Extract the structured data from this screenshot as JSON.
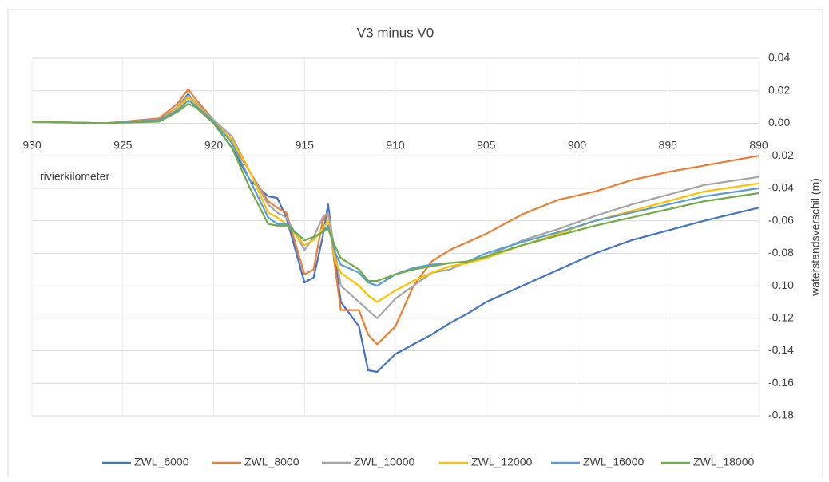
{
  "chart_data": {
    "type": "line",
    "title": "V3 minus V0",
    "annotation": "rivierkilometer",
    "y_label": "waterstandsverschil (m)",
    "x": [
      930,
      926,
      923,
      922,
      921.4,
      921,
      920,
      919,
      918,
      917,
      916.5,
      916,
      915,
      914.5,
      914,
      913.7,
      913.3,
      913,
      912,
      911.5,
      911,
      910,
      909,
      908,
      907,
      906,
      905,
      903,
      901,
      899,
      897,
      895,
      893,
      890
    ],
    "series": [
      {
        "name": "ZWL_6000",
        "color": "#4472c4",
        "values": [
          0.001,
          0,
          0.002,
          0.01,
          0.018,
          0.012,
          0.0,
          -0.015,
          -0.035,
          -0.045,
          -0.046,
          -0.058,
          -0.098,
          -0.095,
          -0.07,
          -0.05,
          -0.085,
          -0.11,
          -0.125,
          -0.152,
          -0.153,
          -0.142,
          -0.136,
          -0.13,
          -0.123,
          -0.117,
          -0.11,
          -0.1,
          -0.09,
          -0.08,
          -0.072,
          -0.066,
          -0.06,
          -0.052
        ]
      },
      {
        "name": "ZWL_8000",
        "color": "#ed7d31",
        "values": [
          0.001,
          0,
          0.003,
          0.012,
          0.021,
          0.015,
          0.002,
          -0.012,
          -0.03,
          -0.048,
          -0.052,
          -0.055,
          -0.093,
          -0.09,
          -0.06,
          -0.055,
          -0.09,
          -0.115,
          -0.115,
          -0.13,
          -0.136,
          -0.125,
          -0.1,
          -0.085,
          -0.078,
          -0.073,
          -0.068,
          -0.056,
          -0.047,
          -0.042,
          -0.035,
          -0.03,
          -0.026,
          -0.02
        ]
      },
      {
        "name": "ZWL_10000",
        "color": "#a5a5a5",
        "values": [
          0.001,
          0,
          0.002,
          0.01,
          0.017,
          0.013,
          0.002,
          -0.008,
          -0.03,
          -0.05,
          -0.055,
          -0.058,
          -0.078,
          -0.07,
          -0.058,
          -0.055,
          -0.08,
          -0.1,
          -0.11,
          -0.115,
          -0.12,
          -0.108,
          -0.1,
          -0.092,
          -0.09,
          -0.085,
          -0.082,
          -0.072,
          -0.065,
          -0.057,
          -0.05,
          -0.044,
          -0.038,
          -0.033
        ]
      },
      {
        "name": "ZWL_12000",
        "color": "#ffc000",
        "values": [
          0.001,
          0,
          0.002,
          0.009,
          0.016,
          0.012,
          0.001,
          -0.01,
          -0.03,
          -0.055,
          -0.058,
          -0.062,
          -0.075,
          -0.072,
          -0.065,
          -0.06,
          -0.085,
          -0.092,
          -0.1,
          -0.106,
          -0.11,
          -0.103,
          -0.097,
          -0.092,
          -0.088,
          -0.086,
          -0.083,
          -0.075,
          -0.068,
          -0.06,
          -0.054,
          -0.048,
          -0.042,
          -0.037
        ]
      },
      {
        "name": "ZWL_16000",
        "color": "#5b9bd5",
        "values": [
          0.001,
          0,
          0.002,
          0.008,
          0.014,
          0.011,
          0.001,
          -0.012,
          -0.035,
          -0.058,
          -0.062,
          -0.062,
          -0.072,
          -0.07,
          -0.067,
          -0.063,
          -0.08,
          -0.087,
          -0.092,
          -0.098,
          -0.1,
          -0.093,
          -0.089,
          -0.087,
          -0.086,
          -0.085,
          -0.08,
          -0.073,
          -0.067,
          -0.06,
          -0.055,
          -0.05,
          -0.045,
          -0.04
        ]
      },
      {
        "name": "ZWL_18000",
        "color": "#70ad47",
        "values": [
          0.001,
          0,
          0.001,
          0.007,
          0.012,
          0.01,
          0,
          -0.015,
          -0.04,
          -0.062,
          -0.063,
          -0.063,
          -0.072,
          -0.07,
          -0.067,
          -0.065,
          -0.076,
          -0.083,
          -0.09,
          -0.097,
          -0.097,
          -0.093,
          -0.09,
          -0.088,
          -0.086,
          -0.085,
          -0.082,
          -0.075,
          -0.069,
          -0.063,
          -0.058,
          -0.053,
          -0.048,
          -0.043
        ]
      }
    ],
    "xlim": [
      930,
      890
    ],
    "xticks": [
      930,
      925,
      920,
      915,
      910,
      905,
      900,
      895,
      890
    ],
    "ylim": [
      -0.18,
      0.04
    ],
    "yticks": [
      0.04,
      0.02,
      {
        "value": 0,
        "label": "0.00"
      },
      -0.02,
      -0.04,
      -0.06,
      -0.08,
      {
        "value": -0.1,
        "label": "-0.10"
      },
      -0.12,
      -0.14,
      -0.16,
      -0.18
    ],
    "grid": true,
    "legend": "bottom"
  }
}
